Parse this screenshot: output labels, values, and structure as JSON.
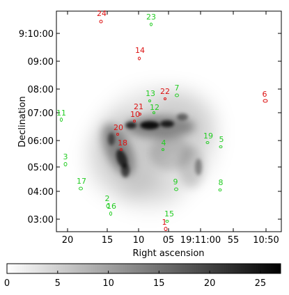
{
  "image": {
    "xlabel": "Right ascension",
    "ylabel": "Declination",
    "x_ticks": [
      "20",
      "15",
      "10",
      "05",
      "19:11:00",
      "55",
      "10:50"
    ],
    "y_ticks": [
      "9:10:00",
      "09:00",
      "08:00",
      "07:00",
      "06:00",
      "05:00",
      "04:00",
      "03:00"
    ],
    "colorbar": {
      "ticks": [
        "0",
        "5",
        "10",
        "15",
        "20",
        "25"
      ],
      "min": 0,
      "max": 27
    },
    "colors": {
      "green": "#22cc22",
      "red": "#dd1111",
      "nebula": "#000000"
    },
    "sources": [
      {
        "id": "1",
        "color": "red"
      },
      {
        "id": "2",
        "color": "green"
      },
      {
        "id": "3",
        "color": "green"
      },
      {
        "id": "4",
        "color": "green"
      },
      {
        "id": "5",
        "color": "green"
      },
      {
        "id": "6",
        "color": "red"
      },
      {
        "id": "7",
        "color": "green"
      },
      {
        "id": "8",
        "color": "green"
      },
      {
        "id": "9",
        "color": "green"
      },
      {
        "id": "10",
        "color": "red"
      },
      {
        "id": "11",
        "color": "green"
      },
      {
        "id": "12",
        "color": "green"
      },
      {
        "id": "13",
        "color": "green"
      },
      {
        "id": "14",
        "color": "red"
      },
      {
        "id": "15",
        "color": "green"
      },
      {
        "id": "16",
        "color": "green"
      },
      {
        "id": "17",
        "color": "green"
      },
      {
        "id": "18",
        "color": "red"
      },
      {
        "id": "19",
        "color": "green"
      },
      {
        "id": "20",
        "color": "red"
      },
      {
        "id": "21",
        "color": "red"
      },
      {
        "id": "22",
        "color": "red"
      },
      {
        "id": "23",
        "color": "green"
      },
      {
        "id": "24",
        "color": "red"
      }
    ]
  }
}
